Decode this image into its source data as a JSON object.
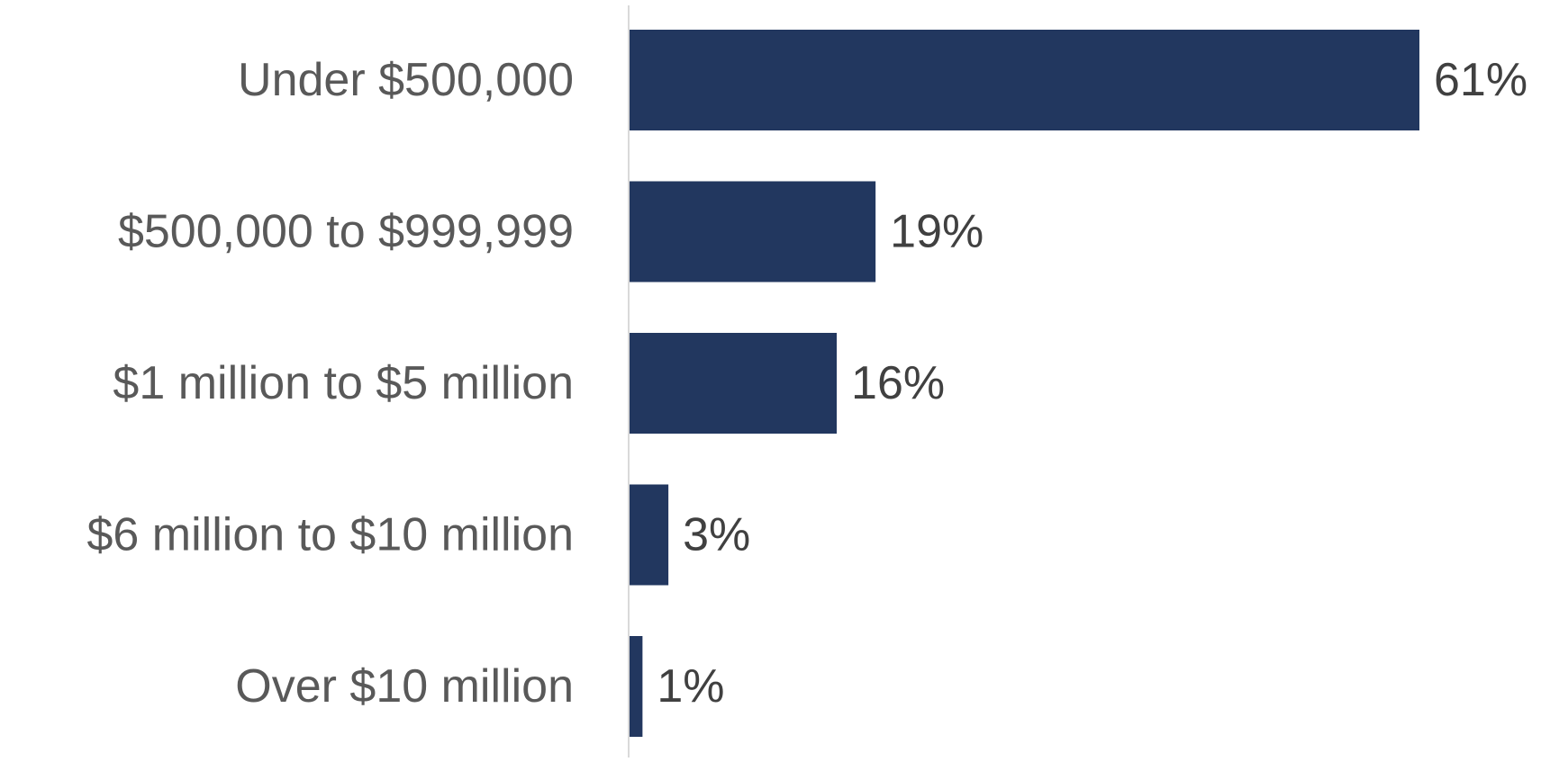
{
  "chart_data": {
    "type": "bar",
    "orientation": "horizontal",
    "categories": [
      "Under $500,000",
      "$500,000 to $999,999",
      "$1 million to $5 million",
      "$6 million to $10 million",
      "Over $10 million"
    ],
    "values": [
      61,
      19,
      16,
      3,
      1
    ],
    "value_labels": [
      "61%",
      "19%",
      "16%",
      "3%",
      "1%"
    ],
    "unit": "%",
    "xlim": [
      0,
      61
    ],
    "title": "",
    "xlabel": "",
    "ylabel": "",
    "grid": false,
    "legend": "none",
    "bar_color": "#22375F",
    "axis_color": "#D9D9D9"
  }
}
